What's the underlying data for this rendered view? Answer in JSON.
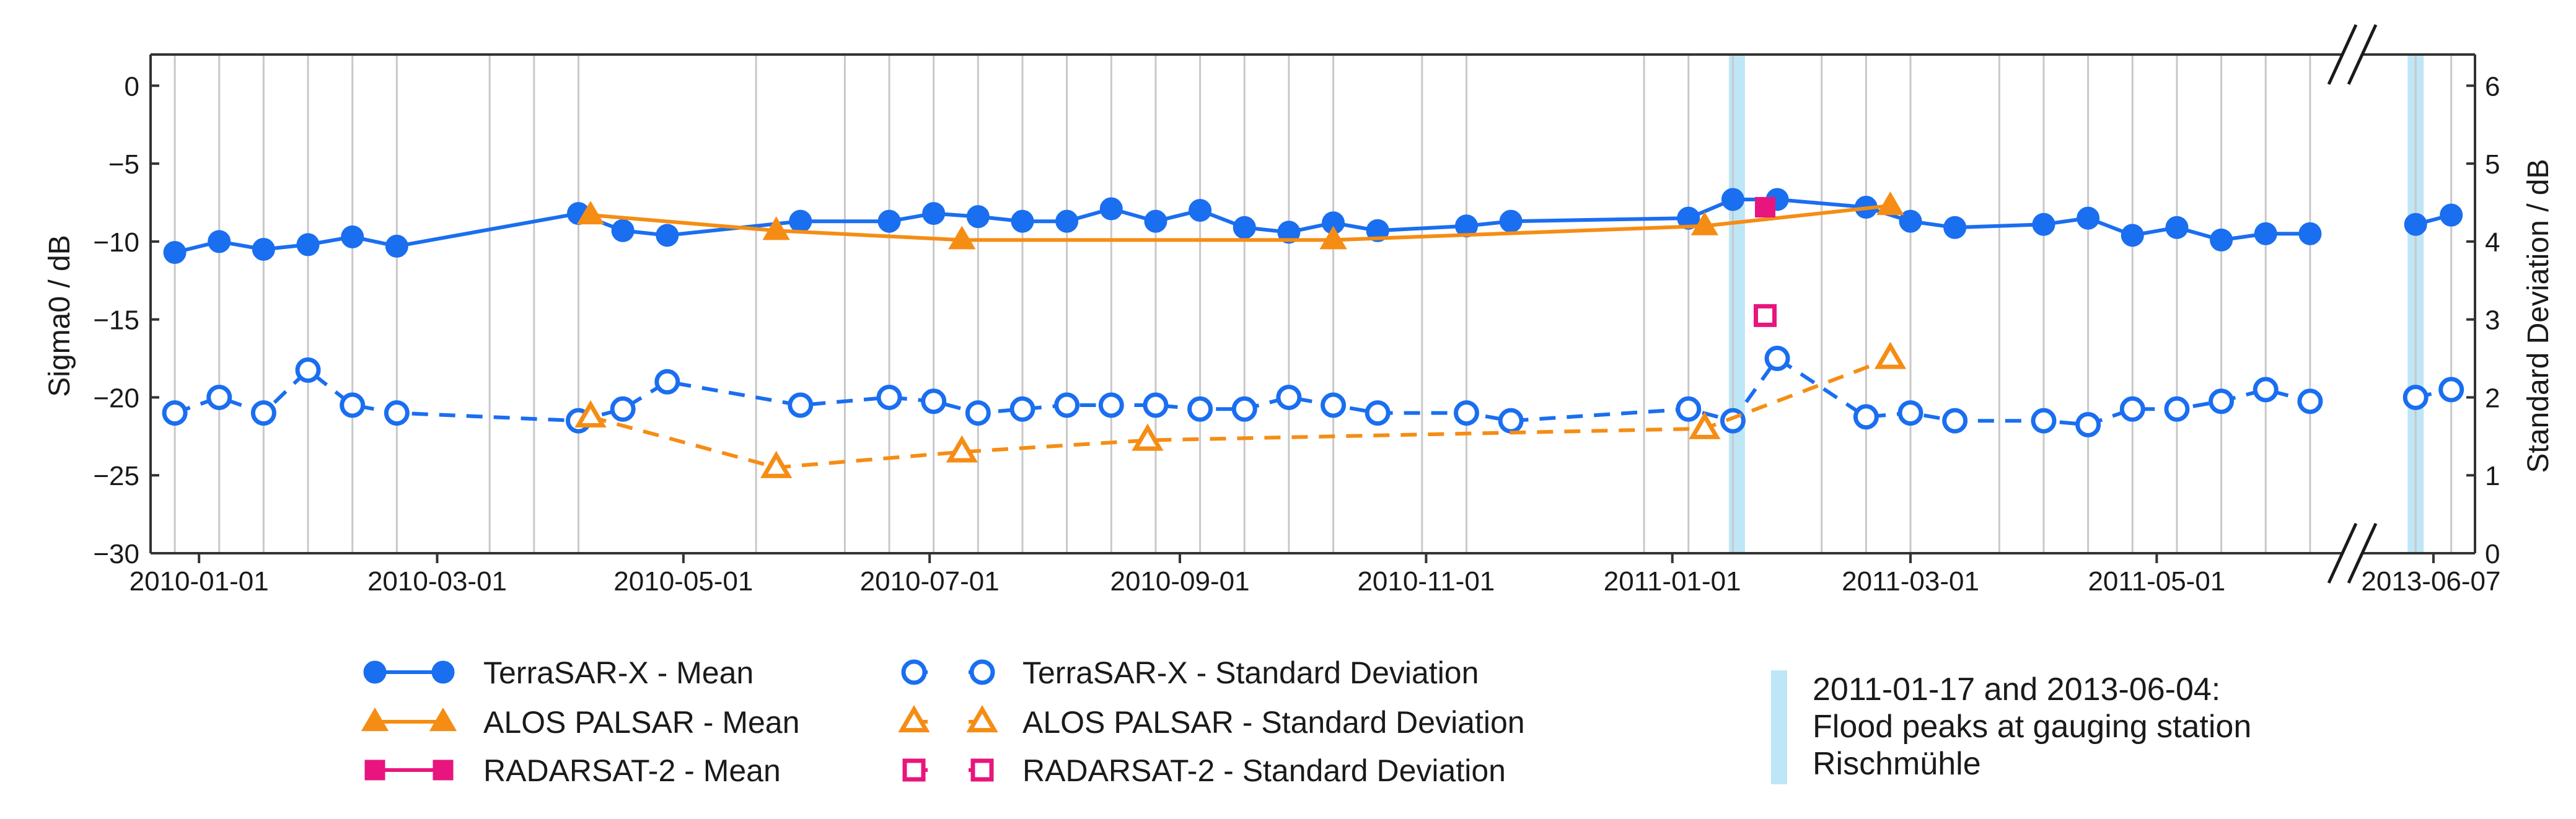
{
  "chart_data": {
    "type": "line",
    "left_axis": {
      "label": "Sigma0 / dB",
      "ylim": [
        -30,
        2
      ],
      "ticks": [
        0,
        -5,
        -10,
        -15,
        -20,
        -25,
        -30
      ],
      "tick_labels": [
        "0",
        "−5",
        "−10",
        "−15",
        "−20",
        "−25",
        "−30"
      ]
    },
    "right_axis": {
      "label": "Standard Deviation / dB",
      "ylim": [
        0,
        6.4
      ],
      "ticks": [
        0,
        1,
        2,
        3,
        4,
        5,
        6
      ],
      "tick_labels": [
        "0",
        "1",
        "2",
        "3",
        "4",
        "5",
        "6"
      ]
    },
    "x_axis": {
      "type": "date",
      "segments": [
        {
          "start": "2009-12-20",
          "end": "2011-06-16"
        },
        {
          "start": "2013-05-26",
          "end": "2013-06-14"
        }
      ],
      "tick_dates": [
        "2010-01-01",
        "2010-03-01",
        "2010-05-01",
        "2010-07-01",
        "2010-09-01",
        "2010-11-01",
        "2011-01-01",
        "2011-03-01",
        "2011-05-01"
      ],
      "tick_labels": [
        "2010-01-01",
        "2010-03-01",
        "2010-05-01",
        "2010-07-01",
        "2010-09-01",
        "2010-11-01",
        "2011-01-01",
        "2011-03-01",
        "2011-05-01"
      ],
      "break_tick_date": "2013-06-07",
      "break_tick_label": "2013-06-07"
    },
    "acquisition_dates": [
      "2009-12-26",
      "2010-01-06",
      "2010-01-17",
      "2010-01-28",
      "2010-02-08",
      "2010-02-19",
      "2010-03-14",
      "2010-03-25",
      "2010-04-05",
      "2010-05-19",
      "2010-06-10",
      "2010-06-21",
      "2010-07-02",
      "2010-07-13",
      "2010-07-24",
      "2010-08-04",
      "2010-08-15",
      "2010-08-26",
      "2010-09-06",
      "2010-09-17",
      "2010-09-28",
      "2010-10-09",
      "2010-10-31",
      "2010-11-11",
      "2010-12-25",
      "2011-01-05",
      "2011-01-16",
      "2011-02-07",
      "2011-02-18",
      "2011-03-01",
      "2011-03-23",
      "2011-04-03",
      "2011-04-14",
      "2011-04-25",
      "2011-05-06",
      "2011-05-17",
      "2011-05-28",
      "2011-06-08",
      "2013-06-04",
      "2013-06-10"
    ],
    "flood_peaks": [
      "2011-01-17",
      "2013-06-04"
    ],
    "series": [
      {
        "name": "TerraSAR-X - Mean",
        "axis": "left",
        "marker": "circle",
        "filled": true,
        "dashed": false,
        "color": "#1a6ef0",
        "points": [
          [
            "2009-12-26",
            -10.7
          ],
          [
            "2010-01-06",
            -10.0
          ],
          [
            "2010-01-17",
            -10.5
          ],
          [
            "2010-01-28",
            -10.2
          ],
          [
            "2010-02-08",
            -9.7
          ],
          [
            "2010-02-19",
            -10.3
          ],
          [
            "2010-04-05",
            -8.2
          ],
          [
            "2010-04-16",
            -9.3
          ],
          [
            "2010-04-27",
            -9.6
          ],
          [
            "2010-05-30",
            -8.7
          ],
          [
            "2010-06-21",
            -8.7
          ],
          [
            "2010-07-02",
            -8.2
          ],
          [
            "2010-07-13",
            -8.4
          ],
          [
            "2010-07-24",
            -8.7
          ],
          [
            "2010-08-04",
            -8.7
          ],
          [
            "2010-08-15",
            -7.9
          ],
          [
            "2010-08-26",
            -8.7
          ],
          [
            "2010-09-06",
            -8.0
          ],
          [
            "2010-09-17",
            -9.1
          ],
          [
            "2010-09-28",
            -9.4
          ],
          [
            "2010-10-09",
            -8.8
          ],
          [
            "2010-10-20",
            -9.3
          ],
          [
            "2010-11-11",
            -9.0
          ],
          [
            "2010-11-22",
            -8.7
          ],
          [
            "2011-01-05",
            -8.5
          ],
          [
            "2011-01-16",
            -7.3
          ],
          [
            "2011-01-27",
            -7.3
          ],
          [
            "2011-02-18",
            -7.8
          ],
          [
            "2011-03-01",
            -8.7
          ],
          [
            "2011-03-12",
            -9.1
          ],
          [
            "2011-04-03",
            -8.9
          ],
          [
            "2011-04-14",
            -8.5
          ],
          [
            "2011-04-25",
            -9.6
          ],
          [
            "2011-05-06",
            -9.1
          ],
          [
            "2011-05-17",
            -9.9
          ],
          [
            "2011-05-28",
            -9.5
          ],
          [
            "2011-06-08",
            -9.5
          ]
        ],
        "points_after_break": [
          [
            "2013-06-04",
            -8.9
          ],
          [
            "2013-06-10",
            -8.3
          ]
        ]
      },
      {
        "name": "ALOS PALSAR - Mean",
        "axis": "left",
        "marker": "triangle",
        "filled": true,
        "dashed": false,
        "color": "#f58d14",
        "points": [
          [
            "2010-04-08",
            -8.3
          ],
          [
            "2010-05-24",
            -9.3
          ],
          [
            "2010-07-09",
            -9.9
          ],
          [
            "2010-10-09",
            -9.9
          ],
          [
            "2011-01-09",
            -9.0
          ],
          [
            "2011-02-24",
            -7.7
          ]
        ],
        "points_after_break": []
      },
      {
        "name": "RADARSAT-2 - Mean",
        "axis": "left",
        "marker": "square",
        "filled": true,
        "dashed": false,
        "color": "#e8157e",
        "points": [
          [
            "2011-01-24",
            -7.8
          ]
        ],
        "points_after_break": []
      },
      {
        "name": "TerraSAR-X - Standard Deviation",
        "axis": "right",
        "marker": "circle",
        "filled": false,
        "dashed": true,
        "color": "#1a6ef0",
        "points": [
          [
            "2009-12-26",
            1.8
          ],
          [
            "2010-01-06",
            2.0
          ],
          [
            "2010-01-17",
            1.8
          ],
          [
            "2010-01-28",
            2.35
          ],
          [
            "2010-02-08",
            1.9
          ],
          [
            "2010-02-19",
            1.8
          ],
          [
            "2010-04-05",
            1.7
          ],
          [
            "2010-04-16",
            1.85
          ],
          [
            "2010-04-27",
            2.2
          ],
          [
            "2010-05-30",
            1.9
          ],
          [
            "2010-06-21",
            2.0
          ],
          [
            "2010-07-02",
            1.95
          ],
          [
            "2010-07-13",
            1.8
          ],
          [
            "2010-07-24",
            1.85
          ],
          [
            "2010-08-04",
            1.9
          ],
          [
            "2010-08-15",
            1.9
          ],
          [
            "2010-08-26",
            1.9
          ],
          [
            "2010-09-06",
            1.85
          ],
          [
            "2010-09-17",
            1.85
          ],
          [
            "2010-09-28",
            2.0
          ],
          [
            "2010-10-09",
            1.9
          ],
          [
            "2010-10-20",
            1.8
          ],
          [
            "2010-11-11",
            1.8
          ],
          [
            "2010-11-22",
            1.7
          ],
          [
            "2011-01-05",
            1.85
          ],
          [
            "2011-01-16",
            1.7
          ],
          [
            "2011-01-27",
            2.5
          ],
          [
            "2011-02-18",
            1.75
          ],
          [
            "2011-03-01",
            1.8
          ],
          [
            "2011-03-12",
            1.7
          ],
          [
            "2011-04-03",
            1.7
          ],
          [
            "2011-04-14",
            1.65
          ],
          [
            "2011-04-25",
            1.85
          ],
          [
            "2011-05-06",
            1.85
          ],
          [
            "2011-05-17",
            1.95
          ],
          [
            "2011-05-28",
            2.1
          ],
          [
            "2011-06-08",
            1.95
          ]
        ],
        "points_after_break": [
          [
            "2013-06-04",
            2.0
          ],
          [
            "2013-06-10",
            2.1
          ]
        ]
      },
      {
        "name": "ALOS PALSAR - Standard Deviation",
        "axis": "right",
        "marker": "triangle",
        "filled": false,
        "dashed": true,
        "color": "#f58d14",
        "points": [
          [
            "2010-04-08",
            1.75
          ],
          [
            "2010-05-24",
            1.1
          ],
          [
            "2010-07-09",
            1.3
          ],
          [
            "2010-08-24",
            1.45
          ],
          [
            "2011-01-09",
            1.6
          ],
          [
            "2011-02-24",
            2.5
          ]
        ],
        "points_after_break": []
      },
      {
        "name": "RADARSAT-2 - Standard Deviation",
        "axis": "right",
        "marker": "square",
        "filled": false,
        "dashed": true,
        "color": "#e8157e",
        "points": [
          [
            "2011-01-24",
            3.05
          ]
        ],
        "points_after_break": []
      }
    ],
    "legend": {
      "placement": "bottom",
      "flood_legend_lines": [
        "2011-01-17 and 2013-06-04:",
        "Flood peaks at gauging station",
        "Rischmühle"
      ]
    },
    "colors": {
      "flood_band": "#bfe6f7",
      "grid": "#c8c8c8",
      "axis": "#333333"
    }
  }
}
